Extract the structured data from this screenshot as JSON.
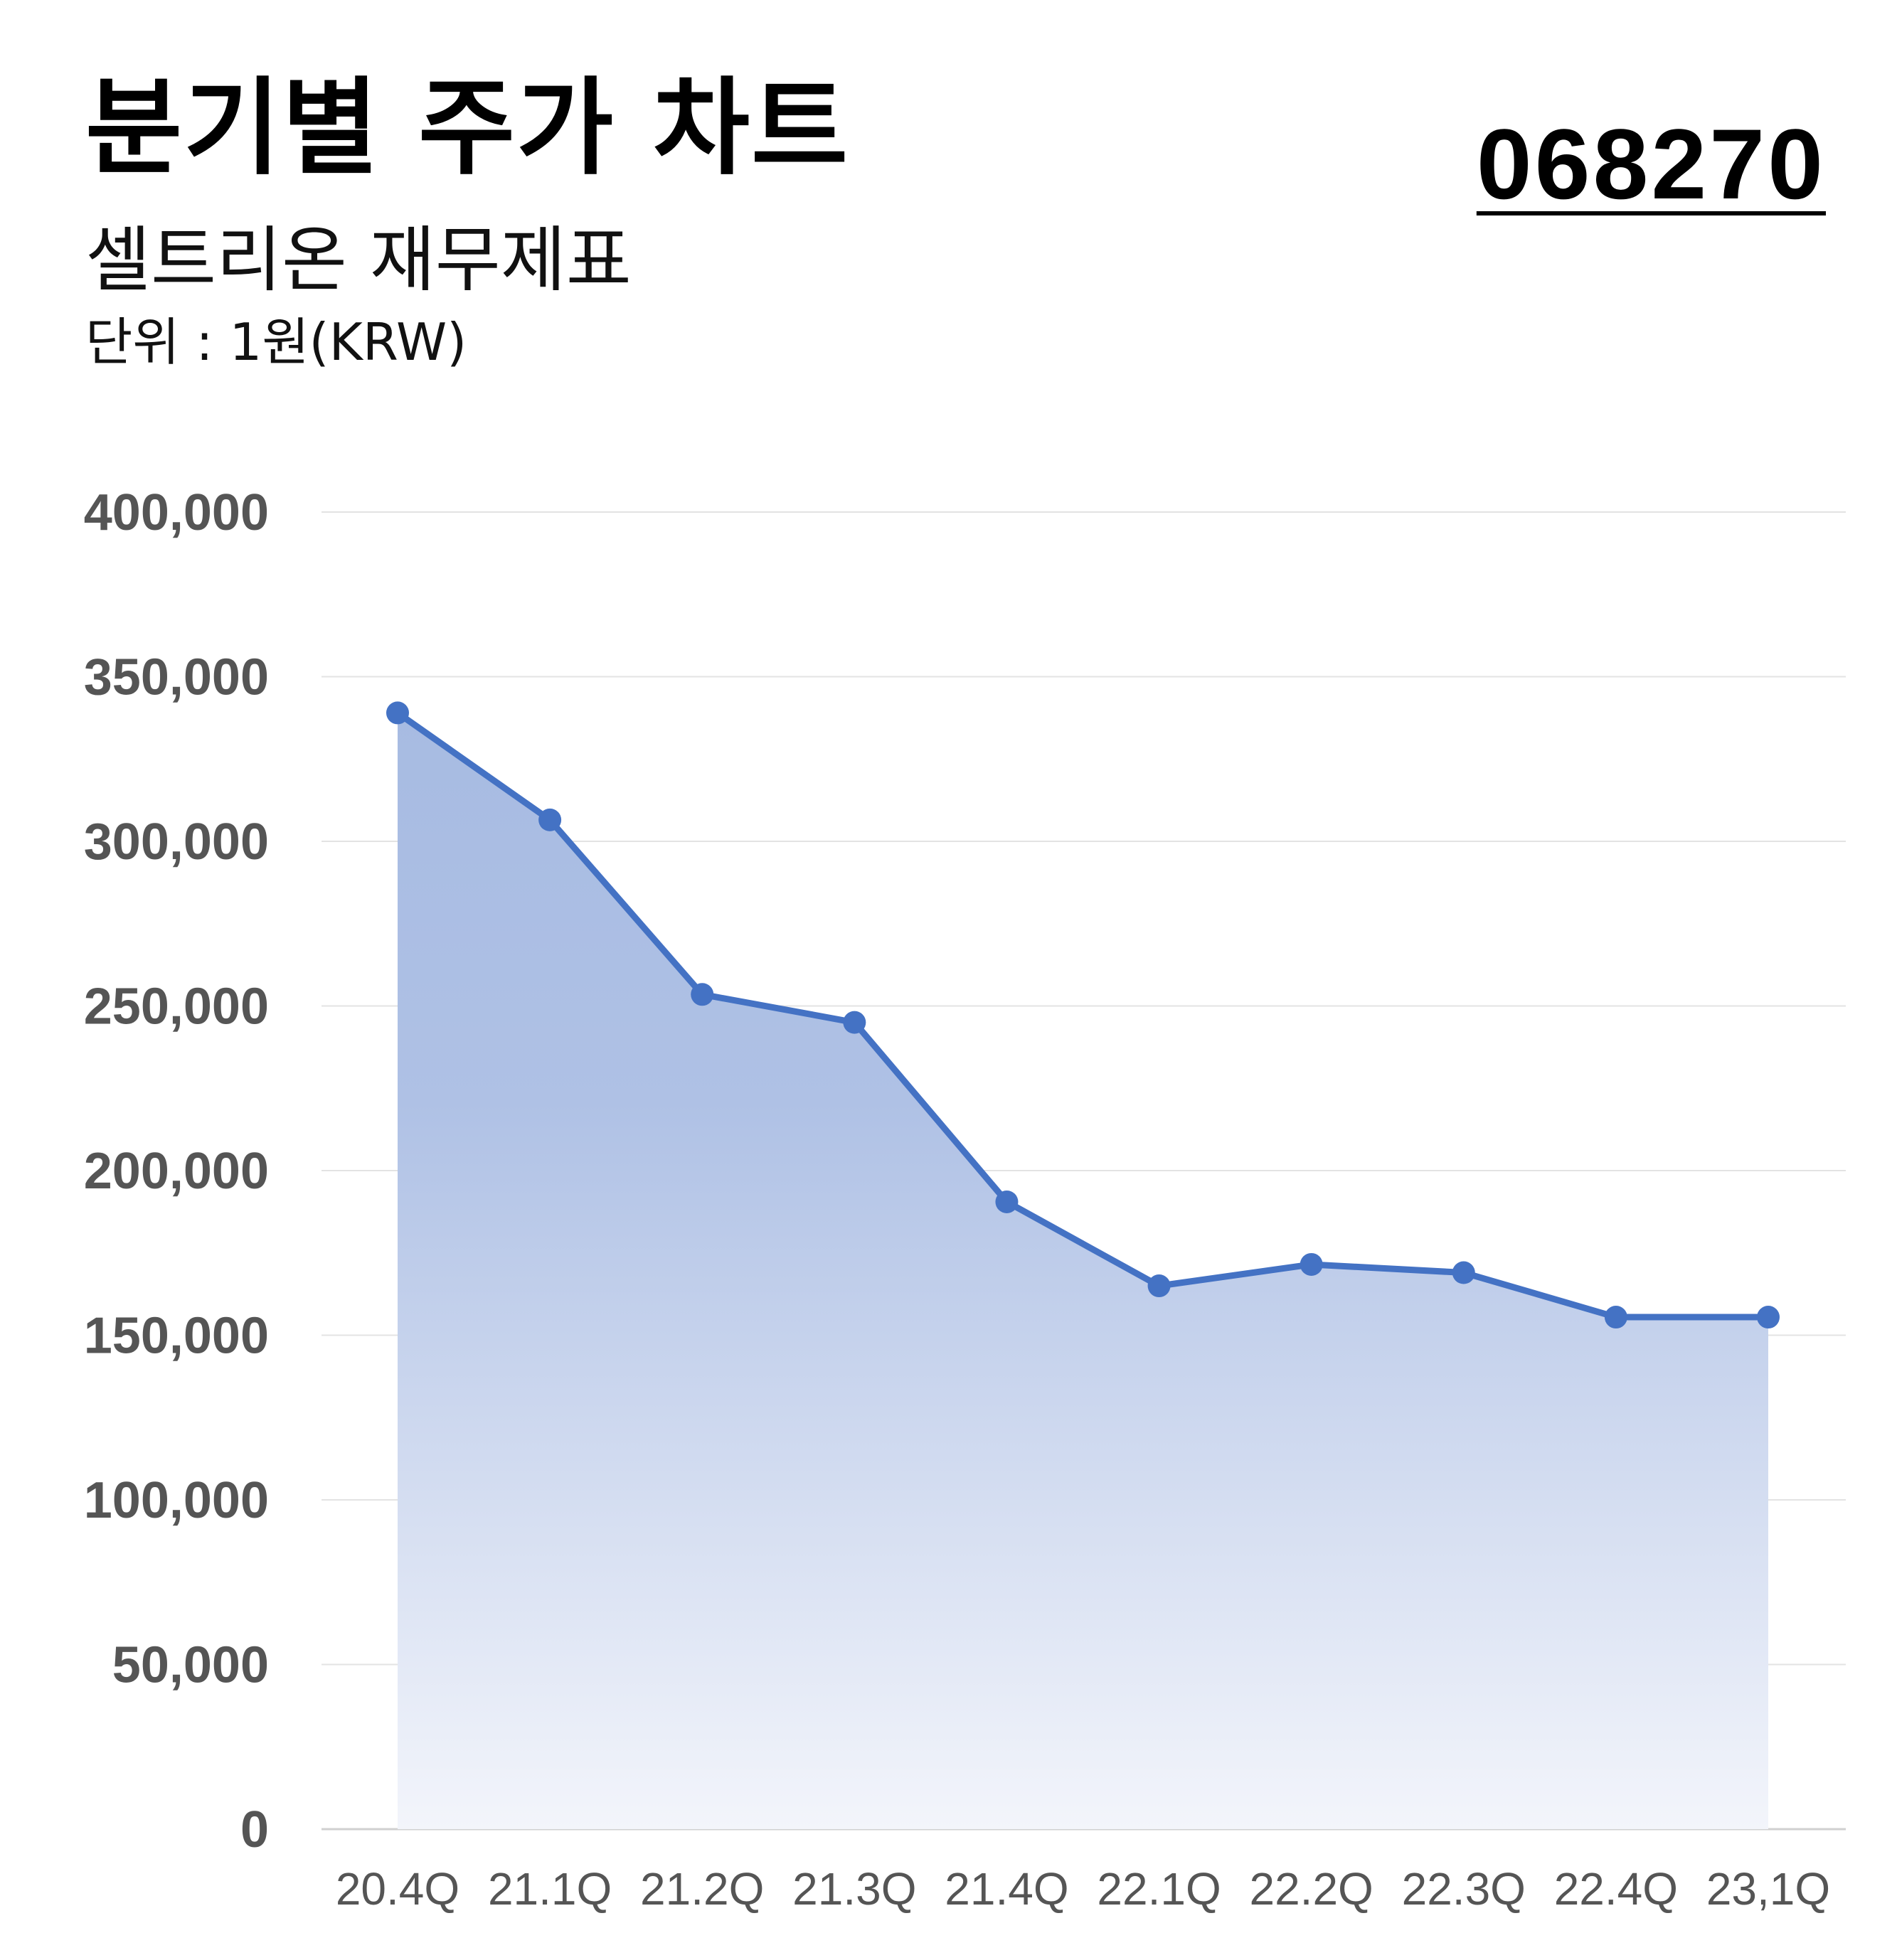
{
  "header": {
    "title": "분기별 주가 차트",
    "code": "068270",
    "subtitle": "셀트리온 재무제표",
    "unit": "단위 : 1원(KRW)"
  },
  "chart_data": {
    "type": "area",
    "title": "분기별 주가 차트",
    "subtitle": "셀트리온 재무제표",
    "xlabel": "",
    "ylabel": "",
    "categories": [
      "20.4Q",
      "21.1Q",
      "21.2Q",
      "21.3Q",
      "21.4Q",
      "22.1Q",
      "22.2Q",
      "22.3Q",
      "22.4Q",
      "23,1Q"
    ],
    "series": [
      {
        "values": [
          339000,
          306500,
          253500,
          245000,
          190500,
          165000,
          171500,
          169000,
          155500,
          155500
        ]
      }
    ],
    "ylim": [
      0,
      400000
    ],
    "yticks": [
      0,
      50000,
      100000,
      150000,
      200000,
      250000,
      300000,
      350000,
      400000
    ],
    "ytick_labels": [
      "0",
      "50,000",
      "100,000",
      "150,000",
      "200,000",
      "250,000",
      "300,000",
      "350,000",
      "400,000"
    ],
    "grid": true,
    "legend": "none",
    "colors": {
      "line": "#4472C4",
      "fill_top": "#A7BBE2",
      "fill_bottom": "#F3F5FB",
      "grid": "#E3E3E3",
      "tick_text": "#555555"
    }
  }
}
